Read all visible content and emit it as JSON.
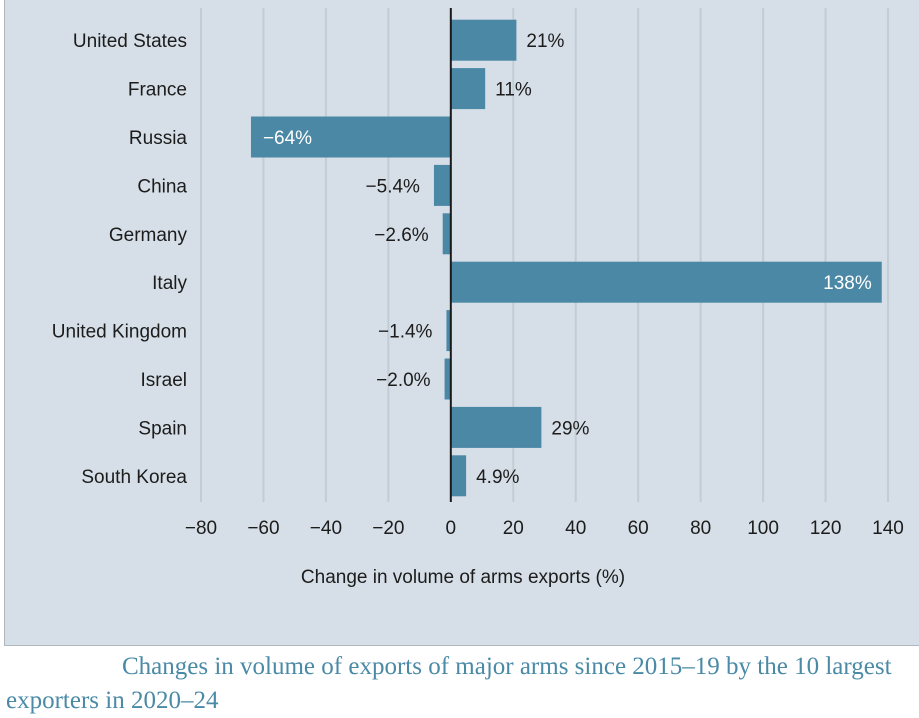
{
  "caption": "Changes in volume of exports of major arms since 2015–19 by the 10 largest exporters in 2020–24",
  "colors": {
    "bar": "#4a88a6",
    "panel_background": "#d6dfe7",
    "gridline": "#c2ccd4",
    "zero_line": "#1a1a1a",
    "caption_text": "#4a8aa6"
  },
  "chart_data": {
    "type": "bar",
    "orientation": "horizontal",
    "categories": [
      "United States",
      "France",
      "Russia",
      "China",
      "Germany",
      "Italy",
      "United Kingdom",
      "Israel",
      "Spain",
      "South Korea"
    ],
    "values": [
      21,
      11,
      -64,
      -5.4,
      -2.6,
      138,
      -1.4,
      -2.0,
      29,
      4.9
    ],
    "value_labels": [
      "21%",
      "11%",
      "−64%",
      "−5.4%",
      "−2.6%",
      "138%",
      "−1.4%",
      "−2.0%",
      "29%",
      "4.9%"
    ],
    "xlabel": "Change in volume of arms exports (%)",
    "xlim": [
      -80,
      140
    ],
    "xticks": [
      -80,
      -60,
      -40,
      -20,
      0,
      20,
      40,
      60,
      80,
      100,
      120,
      140
    ],
    "xtick_labels": [
      "−80",
      "−60",
      "−40",
      "−20",
      "0",
      "20",
      "40",
      "60",
      "80",
      "100",
      "120",
      "140"
    ],
    "grid": true,
    "legend": "none"
  }
}
